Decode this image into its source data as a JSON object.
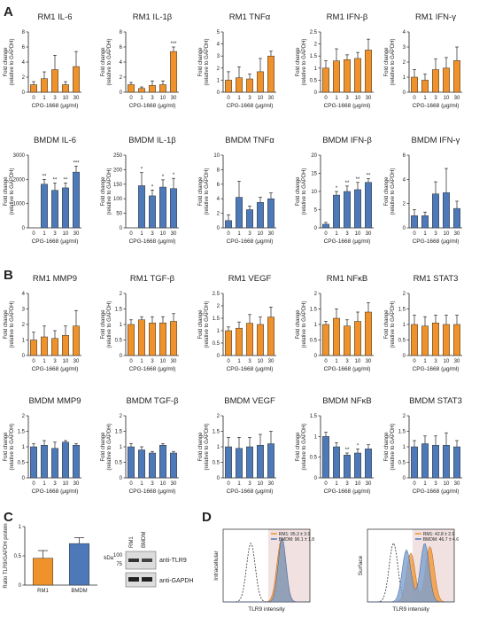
{
  "panel_letters": [
    "A",
    "B",
    "C",
    "D"
  ],
  "colors": {
    "orange": "#F0922B",
    "blue": "#4E79B8",
    "axis": "#222222",
    "shade": "#F1E1E1",
    "fill_blue": "#7CA0D0"
  },
  "chart_data": [
    {
      "id": "a1",
      "type": "bar",
      "title": "RM1 IL-6",
      "xlabel": "CPG-1668 (μg/ml)",
      "ylabel": [
        "Fold change",
        "(relative to GAPDH)"
      ],
      "categories": [
        "0",
        "1",
        "3",
        "10",
        "30"
      ],
      "values": [
        1.0,
        1.8,
        3.0,
        1.0,
        3.4
      ],
      "errors": [
        0.4,
        0.9,
        1.9,
        0.4,
        2.0
      ],
      "ylim": [
        0,
        8
      ],
      "yticks": [
        0,
        2,
        4,
        6,
        8
      ],
      "stars": [
        "",
        "",
        "",
        "",
        ""
      ],
      "color": "orange"
    },
    {
      "id": "a2",
      "type": "bar",
      "title": "RM1 IL-1β",
      "xlabel": "CPG-1668 (μg/ml)",
      "ylabel": [
        "Fold change",
        "(relative to GAPDH)"
      ],
      "categories": [
        "0",
        "1",
        "3",
        "10",
        "30"
      ],
      "values": [
        1.0,
        0.5,
        0.9,
        1.0,
        5.4
      ],
      "errors": [
        0.3,
        0.2,
        0.6,
        0.5,
        0.6
      ],
      "ylim": [
        0,
        8
      ],
      "yticks": [
        0,
        2,
        4,
        6,
        8
      ],
      "stars": [
        "",
        "",
        "",
        "",
        "***"
      ],
      "color": "orange"
    },
    {
      "id": "a3",
      "type": "bar",
      "title": "RM1 TNFα",
      "xlabel": "CPG-1668 (μg/ml)",
      "ylabel": [
        "Fold change",
        "(relative to GAPDH)"
      ],
      "categories": [
        "0",
        "1",
        "3",
        "10",
        "30"
      ],
      "values": [
        1.0,
        1.2,
        1.1,
        1.7,
        3.0
      ],
      "errors": [
        0.7,
        0.9,
        0.4,
        1.1,
        0.4
      ],
      "ylim": [
        0,
        5
      ],
      "yticks": [
        0,
        1,
        2,
        3,
        4,
        5
      ],
      "stars": [
        "",
        "",
        "",
        "",
        ""
      ],
      "color": "orange"
    },
    {
      "id": "a4",
      "type": "bar",
      "title": "RM1 IFN-β",
      "xlabel": "CPG-1668 (μg/ml)",
      "ylabel": [
        "Fold change",
        "(relative to GAPDH)"
      ],
      "categories": [
        "0",
        "1",
        "3",
        "10",
        "30"
      ],
      "values": [
        1.0,
        1.3,
        1.35,
        1.4,
        1.75
      ],
      "errors": [
        0.3,
        0.5,
        0.2,
        0.25,
        0.45
      ],
      "ylim": [
        0,
        2.5
      ],
      "yticks": [
        0,
        0.5,
        1,
        1.5,
        2,
        2.5
      ],
      "stars": [
        "",
        "",
        "",
        "",
        ""
      ],
      "color": "orange"
    },
    {
      "id": "a5",
      "type": "bar",
      "title": "RM1 IFN-γ",
      "xlabel": "CPG-1668 (μg/ml)",
      "ylabel": [
        "Fold change",
        "(relative to GAPDH)"
      ],
      "categories": [
        "0",
        "1",
        "3",
        "10",
        "30"
      ],
      "values": [
        1.0,
        0.8,
        1.5,
        1.6,
        2.1
      ],
      "errors": [
        0.5,
        0.4,
        0.7,
        0.7,
        0.9
      ],
      "ylim": [
        0,
        4
      ],
      "yticks": [
        0,
        1,
        2,
        3,
        4
      ],
      "stars": [
        "",
        "",
        "",
        "",
        ""
      ],
      "color": "orange"
    },
    {
      "id": "a6",
      "type": "bar",
      "title": "BMDM IL-6",
      "xlabel": "CPG-1668 (μg/ml)",
      "ylabel": [
        "Fold change",
        "(relative to GAPDH)"
      ],
      "categories": [
        "0",
        "1",
        "3",
        "10",
        "30"
      ],
      "values": [
        0,
        1800,
        1550,
        1650,
        2300
      ],
      "errors": [
        0,
        200,
        300,
        200,
        250
      ],
      "ylim": [
        0,
        3000
      ],
      "yticks": [
        0,
        1000,
        2000,
        3000
      ],
      "stars": [
        "",
        "**",
        "**",
        "**",
        "***"
      ],
      "color": "blue"
    },
    {
      "id": "a7",
      "type": "bar",
      "title": "BMDM IL-1β",
      "xlabel": "CPG-1668 (μg/ml)",
      "ylabel": [
        "Fold change",
        "(relative to GAPDH)"
      ],
      "categories": [
        "0",
        "1",
        "3",
        "10",
        "30"
      ],
      "values": [
        0,
        145,
        110,
        140,
        135
      ],
      "errors": [
        0,
        45,
        20,
        25,
        35
      ],
      "ylim": [
        0,
        250
      ],
      "yticks": [
        0,
        50,
        100,
        150,
        200,
        250
      ],
      "stars": [
        "",
        "*",
        "*",
        "*",
        "*"
      ],
      "color": "blue"
    },
    {
      "id": "a8",
      "type": "bar",
      "title": "BMDM TNFα",
      "xlabel": "CPG-1668 (μg/ml)",
      "ylabel": [
        "Fold change",
        "(relative to GAPDH)"
      ],
      "categories": [
        "0",
        "1",
        "3",
        "10",
        "30"
      ],
      "values": [
        1.0,
        4.2,
        2.5,
        3.5,
        4.0
      ],
      "errors": [
        0.8,
        2.2,
        0.5,
        0.7,
        0.8
      ],
      "ylim": [
        0,
        10
      ],
      "yticks": [
        0,
        2,
        4,
        6,
        8,
        10
      ],
      "stars": [
        "",
        "",
        "",
        "",
        ""
      ],
      "color": "blue"
    },
    {
      "id": "a9",
      "type": "bar",
      "title": "BMDM IFN-β",
      "xlabel": "CPG-1668 (μg/ml)",
      "ylabel": [
        "Fold change",
        "(relative to GAPDH)"
      ],
      "categories": [
        "0",
        "1",
        "3",
        "10",
        "30"
      ],
      "values": [
        1.0,
        9.0,
        10.0,
        10.5,
        12.5
      ],
      "errors": [
        0.5,
        1.0,
        1.5,
        2.0,
        1.0
      ],
      "ylim": [
        0,
        20
      ],
      "yticks": [
        0,
        5,
        10,
        15,
        20
      ],
      "stars": [
        "",
        "*",
        "**",
        "**",
        "**"
      ],
      "color": "blue"
    },
    {
      "id": "a10",
      "type": "bar",
      "title": "BMDM IFN-γ",
      "xlabel": "CPG-1668 (μg/ml)",
      "ylabel": [
        "Fold change",
        "(relative to GAPDH)"
      ],
      "categories": [
        "0",
        "1",
        "3",
        "10",
        "30"
      ],
      "values": [
        1.0,
        1.0,
        2.8,
        2.9,
        1.6
      ],
      "errors": [
        0.5,
        0.3,
        1.0,
        2.0,
        0.6
      ],
      "ylim": [
        0,
        6
      ],
      "yticks": [
        0,
        2,
        4,
        6
      ],
      "stars": [
        "",
        "",
        "",
        "",
        ""
      ],
      "color": "blue"
    },
    {
      "id": "b1",
      "type": "bar",
      "title": "RM1 MMP9",
      "xlabel": "CPG-1668 (μg/ml)",
      "ylabel": [
        "Fold change",
        "(relative to GAPDH)"
      ],
      "categories": [
        "0",
        "1",
        "3",
        "10",
        "30"
      ],
      "values": [
        1.0,
        1.2,
        1.1,
        1.3,
        1.9
      ],
      "errors": [
        0.5,
        0.7,
        0.5,
        0.6,
        1.0
      ],
      "ylim": [
        0,
        4
      ],
      "yticks": [
        0,
        1,
        2,
        3,
        4
      ],
      "stars": [
        "",
        "",
        "",
        "",
        ""
      ],
      "color": "orange"
    },
    {
      "id": "b2",
      "type": "bar",
      "title": "RM1 TGF-β",
      "xlabel": "CPG-1668 (μg/ml)",
      "ylabel": [
        "Fold change",
        "(relative to GAPDH)"
      ],
      "categories": [
        "0",
        "1",
        "3",
        "10",
        "30"
      ],
      "values": [
        1.0,
        1.15,
        1.05,
        1.05,
        1.1
      ],
      "errors": [
        0.15,
        0.1,
        0.2,
        0.2,
        0.25
      ],
      "ylim": [
        0,
        2.0
      ],
      "yticks": [
        0,
        0.5,
        1.0,
        1.5,
        2.0
      ],
      "stars": [
        "",
        "",
        "",
        "",
        ""
      ],
      "color": "orange"
    },
    {
      "id": "b3",
      "type": "bar",
      "title": "RM1 VEGF",
      "xlabel": "CPG-1668 (μg/ml)",
      "ylabel": [
        "Fold change",
        "(relative to GAPDH)"
      ],
      "categories": [
        "0",
        "1",
        "3",
        "10",
        "30"
      ],
      "values": [
        1.0,
        1.1,
        1.3,
        1.25,
        1.55
      ],
      "errors": [
        0.15,
        0.25,
        0.35,
        0.3,
        0.4
      ],
      "ylim": [
        0,
        2.5
      ],
      "yticks": [
        0,
        0.5,
        1.0,
        1.5,
        2.0,
        2.5
      ],
      "stars": [
        "",
        "",
        "",
        "",
        ""
      ],
      "color": "orange"
    },
    {
      "id": "b4",
      "type": "bar",
      "title": "RM1 NFκB",
      "xlabel": "CPG-1668 (μg/ml)",
      "ylabel": [
        "Fold change",
        "(relative to GAPDH)"
      ],
      "categories": [
        "0",
        "1",
        "3",
        "10",
        "30"
      ],
      "values": [
        1.0,
        1.2,
        0.95,
        1.1,
        1.4
      ],
      "errors": [
        0.1,
        0.3,
        0.2,
        0.3,
        0.3
      ],
      "ylim": [
        0,
        2.0
      ],
      "yticks": [
        0,
        0.5,
        1.0,
        1.5,
        2.0
      ],
      "stars": [
        "",
        "",
        "",
        "",
        ""
      ],
      "color": "orange"
    },
    {
      "id": "b5",
      "type": "bar",
      "title": "RM1 STAT3",
      "xlabel": "CPG-1668 (μg/ml)",
      "ylabel": [
        "Fold change",
        "(relative to GAPDH)"
      ],
      "categories": [
        "0",
        "1",
        "3",
        "10",
        "30"
      ],
      "values": [
        1.0,
        0.95,
        1.05,
        1.0,
        1.0
      ],
      "errors": [
        0.3,
        0.3,
        0.25,
        0.3,
        0.3
      ],
      "ylim": [
        0,
        2.0
      ],
      "yticks": [
        0,
        0.5,
        1.0,
        1.5,
        2.0
      ],
      "stars": [
        "",
        "",
        "",
        "",
        ""
      ],
      "color": "orange"
    },
    {
      "id": "b6",
      "type": "bar",
      "title": "BMDM MMP9",
      "xlabel": "CPG-1668 (μg/ml)",
      "ylabel": [
        "Fold change",
        "(relative to GAPDH)"
      ],
      "categories": [
        "0",
        "1",
        "3",
        "10",
        "30"
      ],
      "values": [
        1.0,
        1.05,
        0.95,
        1.15,
        1.05
      ],
      "errors": [
        0.1,
        0.15,
        0.2,
        0.05,
        0.05
      ],
      "ylim": [
        0,
        2.0
      ],
      "yticks": [
        0,
        0.5,
        1.0,
        1.5,
        2.0
      ],
      "stars": [
        "",
        "",
        "",
        "",
        ""
      ],
      "color": "blue"
    },
    {
      "id": "b7",
      "type": "bar",
      "title": "BMDM TGF-β",
      "xlabel": "CPG-1668 (μg/ml)",
      "ylabel": [
        "Fold change",
        "(relative to GAPDH)"
      ],
      "categories": [
        "0",
        "1",
        "3",
        "10",
        "30"
      ],
      "values": [
        1.0,
        0.9,
        0.8,
        1.05,
        0.8
      ],
      "errors": [
        0.1,
        0.1,
        0.05,
        0.05,
        0.05
      ],
      "ylim": [
        0,
        2.0
      ],
      "yticks": [
        0,
        0.5,
        1.0,
        1.5,
        2.0
      ],
      "stars": [
        "",
        "",
        "",
        "",
        ""
      ],
      "color": "blue"
    },
    {
      "id": "b8",
      "type": "bar",
      "title": "BMDM VEGF",
      "xlabel": "CPG-1668 (μg/ml)",
      "ylabel": [
        "Fold change",
        "(relative to GAPDH)"
      ],
      "categories": [
        "0",
        "1",
        "3",
        "10",
        "30"
      ],
      "values": [
        1.0,
        0.95,
        1.0,
        1.05,
        1.1
      ],
      "errors": [
        0.3,
        0.35,
        0.3,
        0.35,
        0.4
      ],
      "ylim": [
        0,
        2.0
      ],
      "yticks": [
        0,
        0.5,
        1.0,
        1.5,
        2.0
      ],
      "stars": [
        "",
        "",
        "",
        "",
        ""
      ],
      "color": "blue"
    },
    {
      "id": "b9",
      "type": "bar",
      "title": "BMDM NFκB",
      "xlabel": "CPG-1668 (μg/ml)",
      "ylabel": [
        "Fold change",
        "(relative to GAPDH)"
      ],
      "categories": [
        "0",
        "1",
        "3",
        "10",
        "30"
      ],
      "values": [
        1.0,
        0.75,
        0.55,
        0.6,
        0.7
      ],
      "errors": [
        0.1,
        0.1,
        0.05,
        0.1,
        0.1
      ],
      "ylim": [
        0,
        1.5
      ],
      "yticks": [
        0,
        0.5,
        1.0,
        1.5
      ],
      "stars": [
        "",
        "",
        "**",
        "*",
        ""
      ],
      "color": "blue"
    },
    {
      "id": "b10",
      "type": "bar",
      "title": "BMDM STAT3",
      "xlabel": "CPG-1668 (μg/ml)",
      "ylabel": [
        "Fold change",
        "(relative to GAPDH)"
      ],
      "categories": [
        "0",
        "1",
        "3",
        "10",
        "30"
      ],
      "values": [
        1.0,
        1.1,
        1.05,
        1.05,
        1.0
      ],
      "errors": [
        0.2,
        0.25,
        0.3,
        0.4,
        0.2
      ],
      "ylim": [
        0,
        2.0
      ],
      "yticks": [
        0,
        0.5,
        1.0,
        1.5,
        2.0
      ],
      "stars": [
        "",
        "",
        "",
        "",
        ""
      ],
      "color": "blue"
    },
    {
      "id": "c1",
      "type": "bar",
      "title": "",
      "xlabel": "",
      "ylabel": [
        "Ratio TLR9/GAPDH protein"
      ],
      "categories": [
        "RM1",
        "BMDM"
      ],
      "values": [
        0.46,
        0.71
      ],
      "errors": [
        0.13,
        0.1
      ],
      "ylim": [
        0,
        1.0
      ],
      "yticks": [
        0,
        0.5,
        1.0
      ],
      "stars": [
        "",
        ""
      ],
      "colors": [
        "orange",
        "blue"
      ]
    }
  ],
  "western_blot": {
    "lanes": [
      "RM1",
      "BMDM"
    ],
    "kda_label": "kDa",
    "markers": [
      "100",
      "75"
    ],
    "bands": [
      "anti-TLR9",
      "anti-GAPDH"
    ]
  },
  "flow": [
    {
      "side_label": "Intracellular",
      "xlabel": "TLR9 intensity",
      "legend": [
        "RM1: 95.3 ± 3.9",
        "BMDM: 96.1 ± 1.8"
      ]
    },
    {
      "side_label": "Surface",
      "xlabel": "TLR9 intensity",
      "legend": [
        "RM1: 42.8 ± 2.9",
        "BMDM: 46.7 ± 4.6"
      ]
    }
  ]
}
